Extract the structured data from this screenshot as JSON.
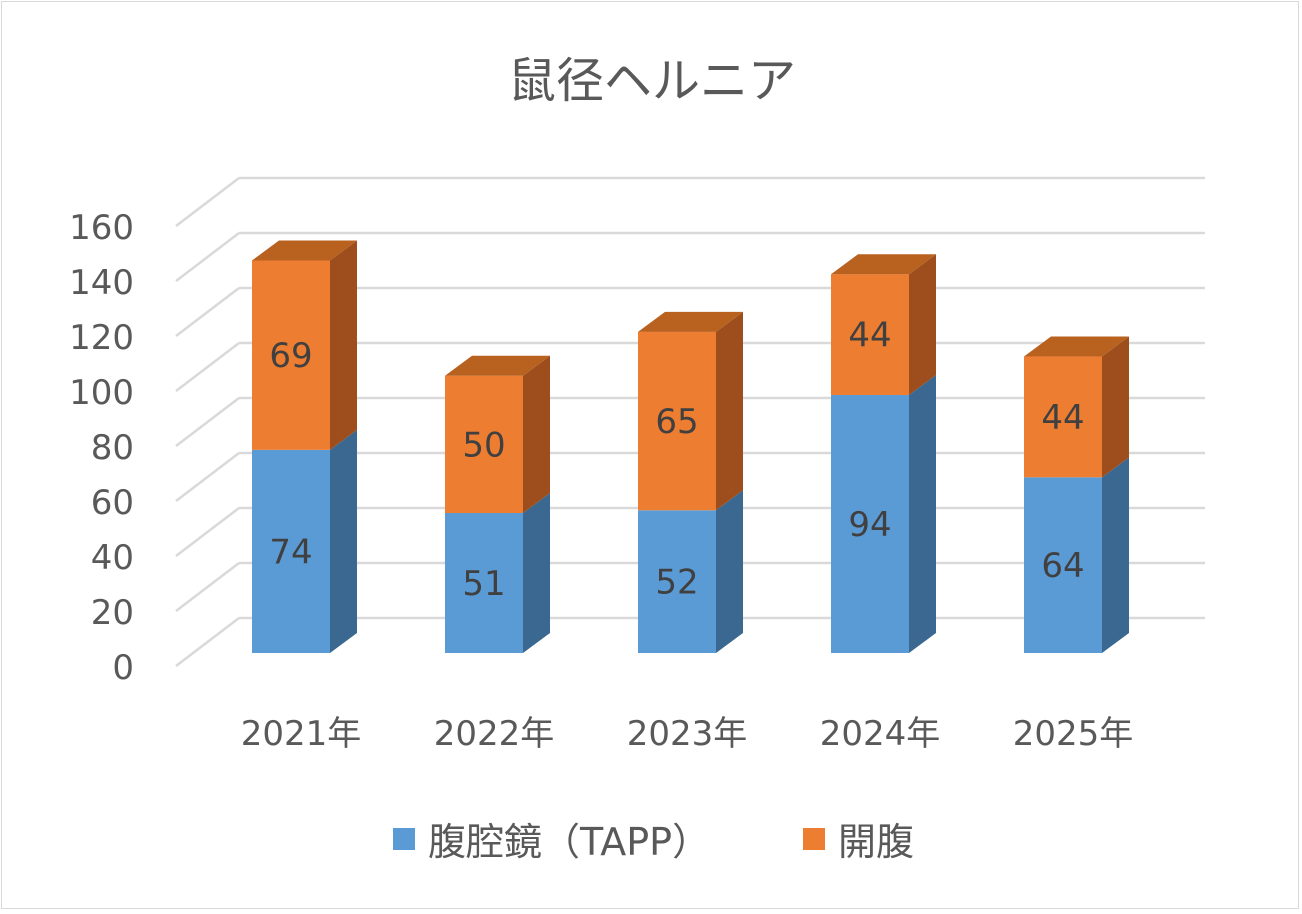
{
  "chart_data": {
    "type": "bar",
    "stacked": true,
    "three_d": true,
    "title": "鼠径ヘルニア",
    "categories": [
      "2021年",
      "2022年",
      "2023年",
      "2024年",
      "2025年"
    ],
    "series": [
      {
        "name": "腹腔鏡（TAPP）",
        "values": [
          74,
          51,
          52,
          94,
          64
        ],
        "color": "#5B9BD5",
        "side_color": "#3A6890",
        "top_color": "#4F86B8"
      },
      {
        "name": "開腹",
        "values": [
          69,
          50,
          65,
          44,
          44
        ],
        "color": "#ED7D31",
        "side_color": "#9E4E1C",
        "top_color": "#B9611F"
      }
    ],
    "ylim": [
      0,
      160
    ],
    "yticks": [
      "0",
      "20",
      "40",
      "60",
      "80",
      "100",
      "120",
      "140",
      "160"
    ],
    "grid": true,
    "legend_position": "bottom",
    "xlabel": "",
    "ylabel": ""
  }
}
